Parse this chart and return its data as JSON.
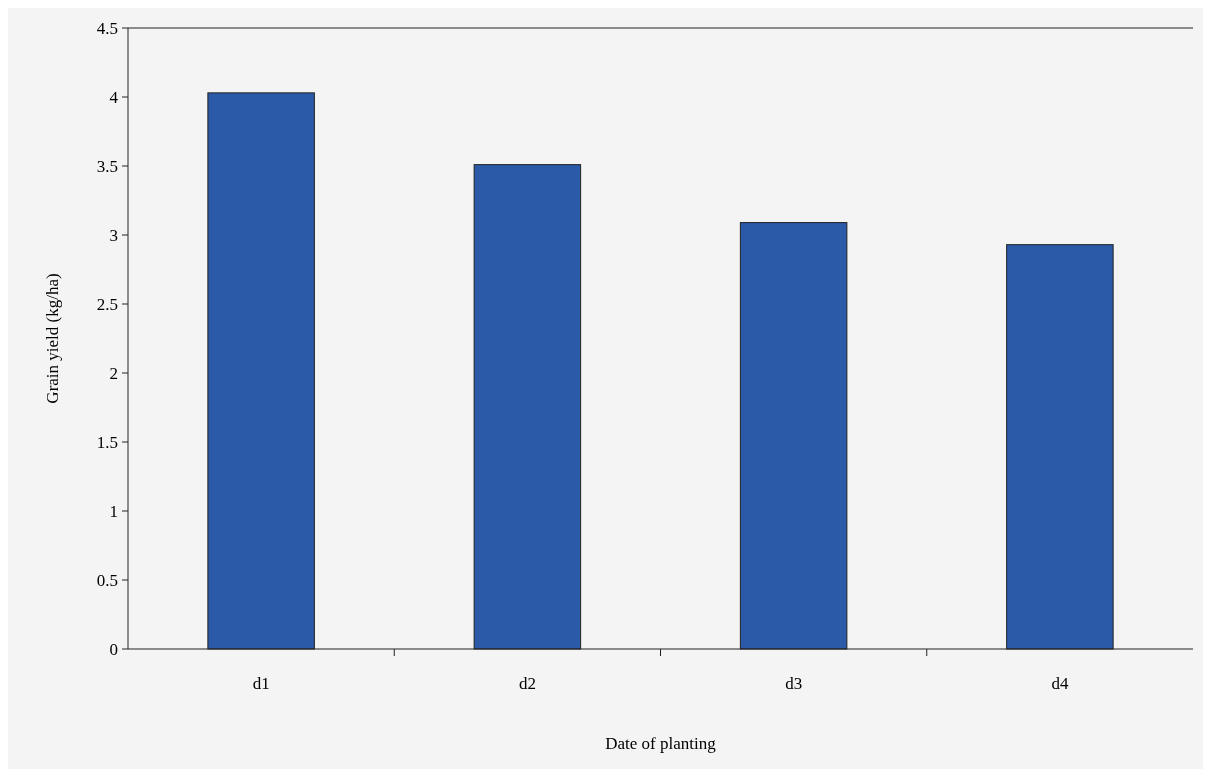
{
  "chart_data": {
    "type": "bar",
    "xlabel": "Date of planting",
    "ylabel": "Grain yield (kg/ha)",
    "categories": [
      "d1",
      "d2",
      "d3",
      "d4"
    ],
    "values": [
      4.03,
      3.51,
      3.09,
      2.93
    ],
    "color": "#2b5aa8",
    "ylim": [
      0,
      4.5
    ],
    "yticks": [
      0,
      0.5,
      1,
      1.5,
      2,
      2.5,
      3,
      3.5,
      4,
      4.5
    ],
    "grid": false
  }
}
